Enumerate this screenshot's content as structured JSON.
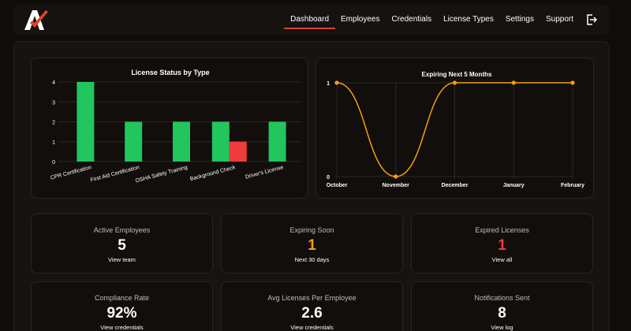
{
  "nav": {
    "items": [
      "Dashboard",
      "Employees",
      "Credentials",
      "License Types",
      "Settings",
      "Support"
    ],
    "active": "Dashboard"
  },
  "colors": {
    "accent": "#e0442a",
    "green": "#22c55e",
    "red": "#ef3b3b",
    "orange": "#f59e0b"
  },
  "charts": {
    "license_status": {
      "title": "License Status by Type"
    },
    "expiring": {
      "title": "Expiring Next 5 Months"
    }
  },
  "chart_data": [
    {
      "type": "bar",
      "title": "License Status by Type",
      "categories": [
        "CPR Certification",
        "First Aid Certification",
        "OSHA Safety Training",
        "Background Check",
        "Driver's License"
      ],
      "series": [
        {
          "values": [
            4,
            2,
            2,
            2,
            2
          ],
          "color": "#22c55e"
        },
        {
          "values": [
            0,
            0,
            0,
            1,
            0
          ],
          "color": "#ef3b3b"
        }
      ],
      "ylim": [
        0,
        4
      ],
      "yticks": [
        0,
        1,
        2,
        3,
        4
      ],
      "grid": true
    },
    {
      "type": "line",
      "title": "Expiring Next 5 Months",
      "x": [
        "October",
        "November",
        "December",
        "January",
        "February"
      ],
      "values": [
        1,
        0,
        1,
        1,
        1
      ],
      "color": "#f59e0b",
      "ylim": [
        0,
        1
      ],
      "yticks": [
        0,
        1
      ],
      "grid": true
    }
  ],
  "cards": [
    {
      "title": "Active Employees",
      "value": "5",
      "link": "View team",
      "color": "#ffffff"
    },
    {
      "title": "Expiring Soon",
      "value": "1",
      "link": "Next 30 days",
      "color": "#f59e0b"
    },
    {
      "title": "Expired Licenses",
      "value": "1",
      "link": "View all",
      "color": "#ef3b3b"
    },
    {
      "title": "Compliance Rate",
      "value": "92%",
      "link": "View credentials",
      "color": "#ffffff"
    },
    {
      "title": "Avg Licenses Per Employee",
      "value": "2.6",
      "link": "View credentials",
      "color": "#ffffff"
    },
    {
      "title": "Notifications Sent",
      "value": "8",
      "link": "View log",
      "color": "#ffffff"
    }
  ]
}
